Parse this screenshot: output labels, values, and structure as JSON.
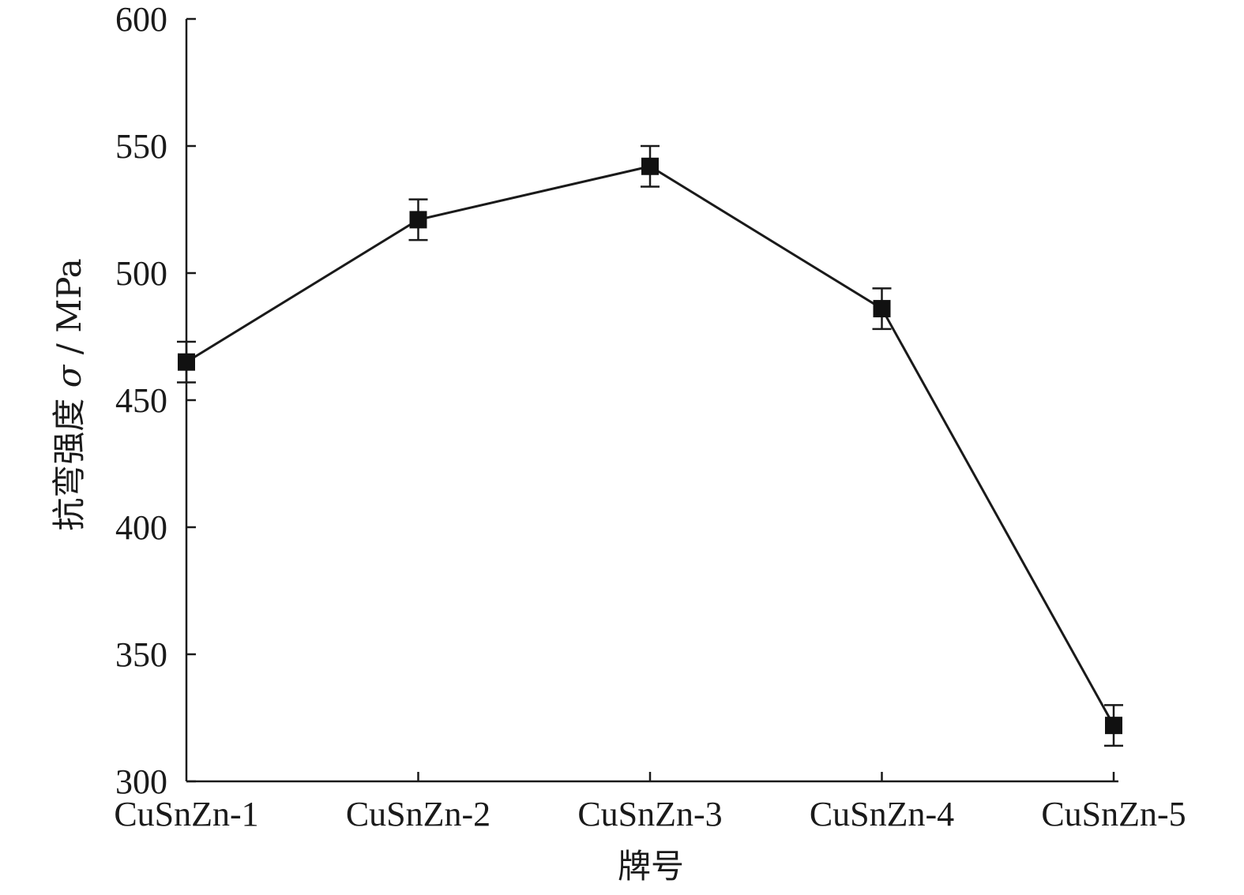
{
  "chart_data": {
    "type": "line",
    "title": "",
    "xlabel": "牌号",
    "ylabel_parts": {
      "prefix": "抗弯强度 ",
      "symbol": "σ",
      "suffix": " / MPa"
    },
    "categories": [
      "CuSnZn-1",
      "CuSnZn-2",
      "CuSnZn-3",
      "CuSnZn-4",
      "CuSnZn-5"
    ],
    "series": [
      {
        "values": [
          465,
          521,
          542,
          486,
          322
        ],
        "error": [
          8,
          8,
          8,
          8,
          8
        ],
        "marker": "square",
        "color": "#111111"
      }
    ],
    "ylim": [
      300,
      600
    ],
    "yticks": [
      300,
      350,
      400,
      450,
      500,
      550,
      600
    ],
    "grid": false,
    "legend": "none"
  }
}
